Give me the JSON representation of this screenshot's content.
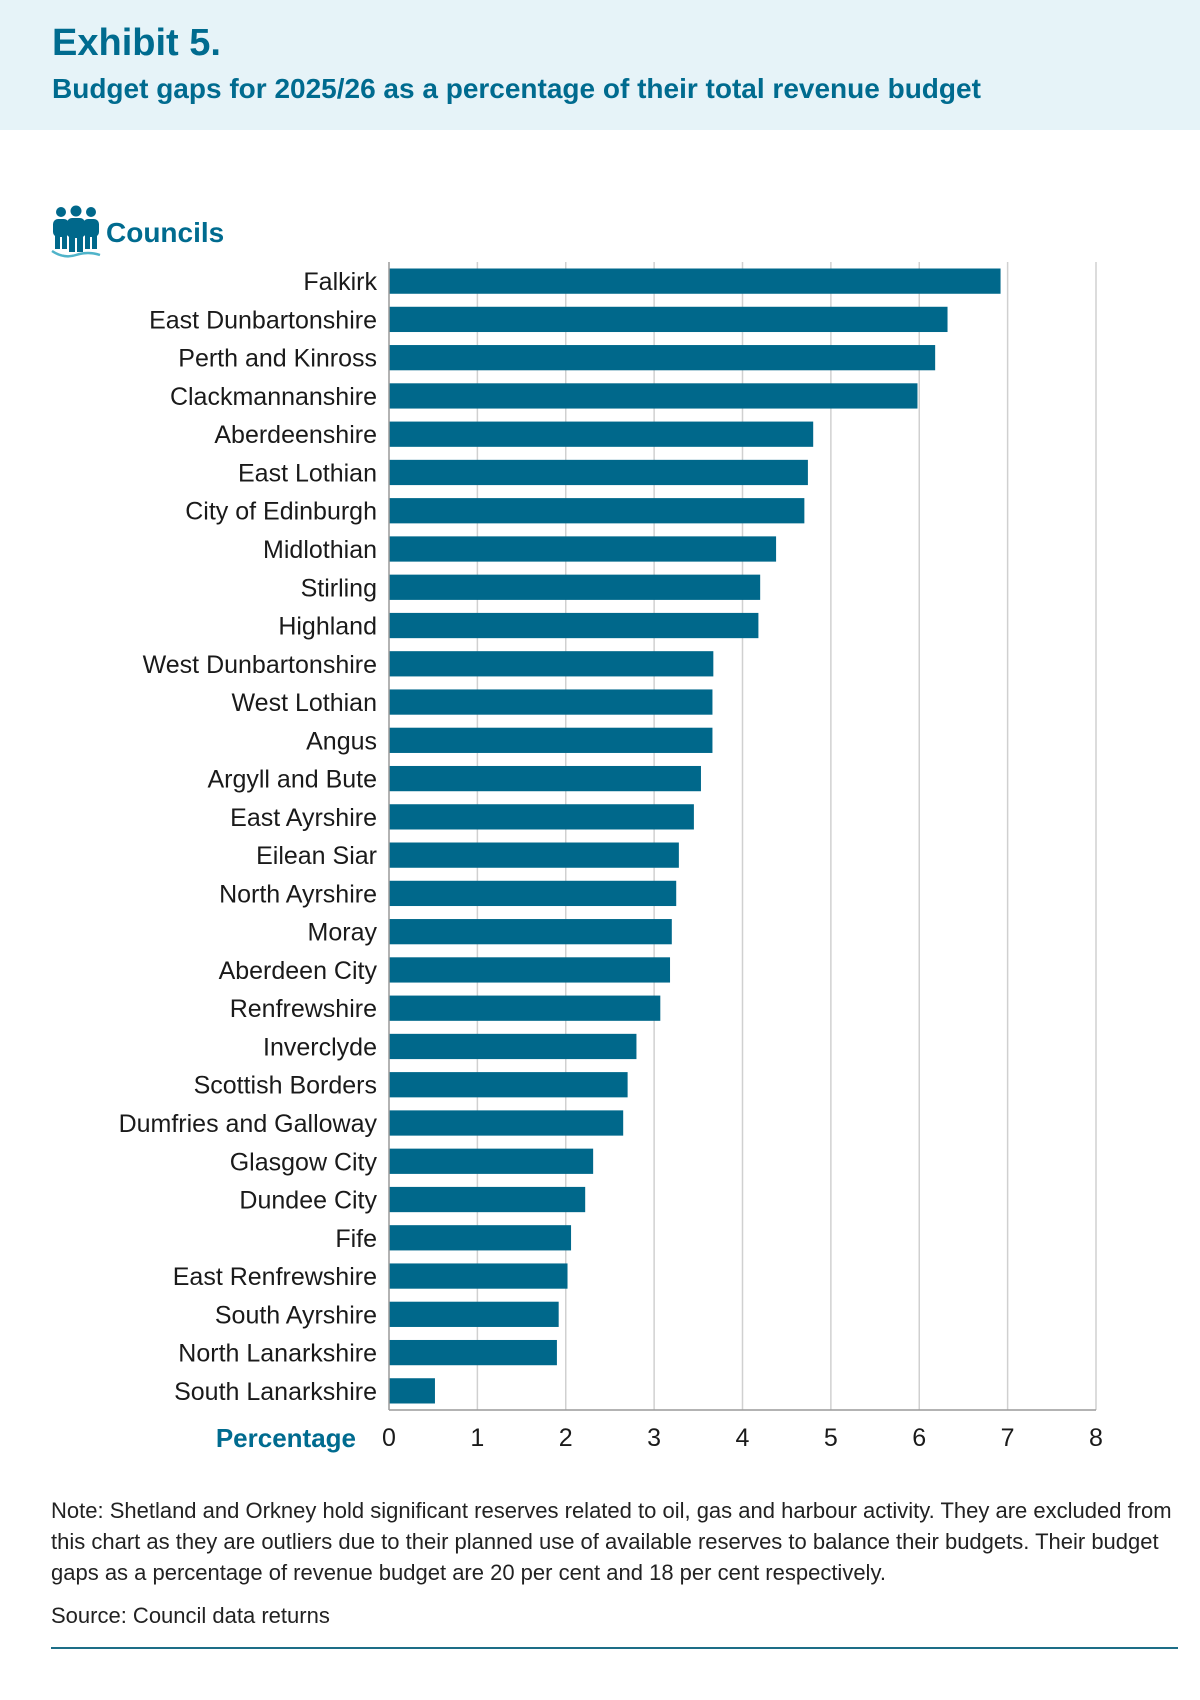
{
  "header": {
    "exhibit": "Exhibit 5.",
    "subtitle": "Budget gaps for 2025/26 as a percentage of their total revenue budget"
  },
  "councils_label": "Councils",
  "icon": "people-group-icon",
  "colors": {
    "bar": "#00688b",
    "title": "#006b8f",
    "header_bg": "#e6f3f8",
    "grid": "#d0d0d0"
  },
  "chart_data": {
    "type": "bar",
    "orientation": "horizontal",
    "categories": [
      "Falkirk",
      "East Dunbartonshire",
      "Perth and Kinross",
      "Clackmannanshire",
      "Aberdeenshire",
      "East Lothian",
      "City of Edinburgh",
      "Midlothian",
      "Stirling",
      "Highland",
      "West Dunbartonshire",
      "West Lothian",
      "Angus",
      "Argyll and Bute",
      "East Ayrshire",
      "Eilean Siar",
      "North Ayrshire",
      "Moray",
      "Aberdeen City",
      "Renfrewshire",
      "Inverclyde",
      "Scottish Borders",
      "Dumfries and Galloway",
      "Glasgow City",
      "Dundee City",
      "Fife",
      "East Renfrewshire",
      "South Ayrshire",
      "North Lanarkshire",
      "South Lanarkshire"
    ],
    "values": [
      6.92,
      6.32,
      6.18,
      5.98,
      4.8,
      4.74,
      4.7,
      4.38,
      4.2,
      4.18,
      3.67,
      3.66,
      3.66,
      3.53,
      3.45,
      3.28,
      3.25,
      3.2,
      3.18,
      3.07,
      2.8,
      2.7,
      2.65,
      2.31,
      2.22,
      2.06,
      2.02,
      1.92,
      1.9,
      0.52
    ],
    "xlabel": "Percentage",
    "xlim": [
      0,
      8
    ],
    "xticks": [
      "0",
      "1",
      "2",
      "3",
      "4",
      "5",
      "6",
      "7",
      "8"
    ],
    "grid": "vertical"
  },
  "note": "Note: Shetland and Orkney hold significant reserves related to oil, gas and harbour activity. They are excluded from this chart as they are outliers due to their planned use of available reserves to balance their budgets. Their budget gaps as a percentage of revenue budget are 20 per cent and 18 per cent respectively.",
  "source": "Source: Council data returns"
}
